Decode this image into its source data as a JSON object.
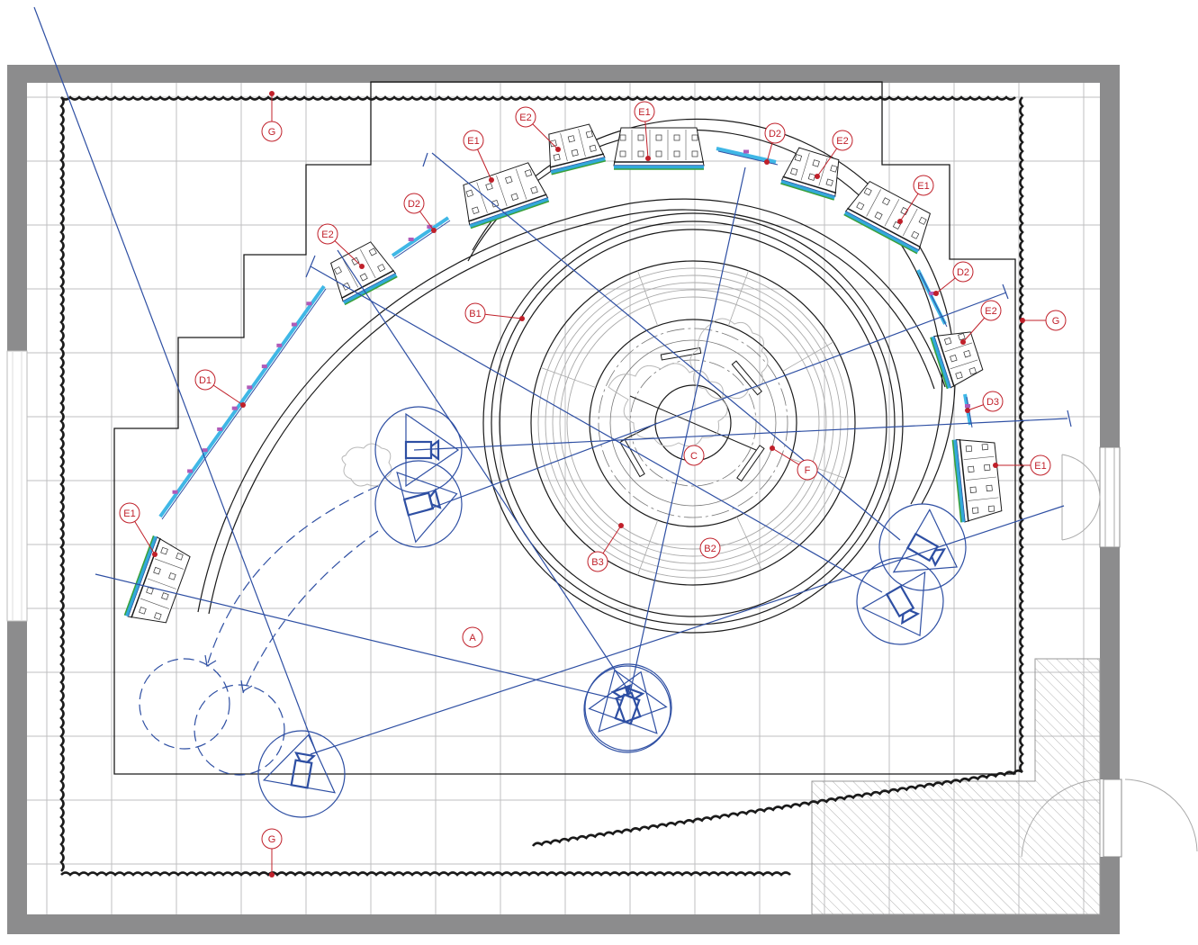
{
  "title": "",
  "colors": {
    "wall": "#8c8c8d",
    "grid": "#bfbfc1",
    "label": "#c0202a",
    "camera": "#2e4fa3",
    "screen": "#3fb7e6",
    "screen_clip": "#b05bb8",
    "cabinet_green": "#3aa13a",
    "outline": "#1a1a1a"
  },
  "labels": {
    "A": "A",
    "B1": "B1",
    "B2": "B2",
    "B3": "B3",
    "C": "C",
    "D1": "D1",
    "D2": "D2",
    "D3": "D3",
    "E1": "E1",
    "E2": "E2",
    "F": "F",
    "G": "G"
  },
  "callouts": [
    {
      "id": "g-top",
      "label": "G"
    },
    {
      "id": "g-right",
      "label": "G"
    },
    {
      "id": "g-bottom",
      "label": "G"
    },
    {
      "id": "e2-a",
      "label": "E2"
    },
    {
      "id": "e1-top",
      "label": "E1"
    },
    {
      "id": "e1-b",
      "label": "E1"
    },
    {
      "id": "d2-a",
      "label": "D2"
    },
    {
      "id": "d2-b",
      "label": "D2"
    },
    {
      "id": "e2-b",
      "label": "E2"
    },
    {
      "id": "e1-c",
      "label": "E1"
    },
    {
      "id": "e2-c",
      "label": "E2"
    },
    {
      "id": "d2-c",
      "label": "D2"
    },
    {
      "id": "e2-d",
      "label": "E2"
    },
    {
      "id": "d3",
      "label": "D3"
    },
    {
      "id": "e1-d",
      "label": "E1"
    },
    {
      "id": "d1",
      "label": "D1"
    },
    {
      "id": "e1-left",
      "label": "E1"
    },
    {
      "id": "b1",
      "label": "B1"
    },
    {
      "id": "c",
      "label": "C"
    },
    {
      "id": "f",
      "label": "F"
    },
    {
      "id": "b3",
      "label": "B3"
    },
    {
      "id": "b2",
      "label": "B2"
    },
    {
      "id": "a",
      "label": "A"
    }
  ],
  "icons": {
    "camera": "camera-icon",
    "door": "door-icon",
    "speaker_cabinet": "cabinet-icon",
    "led_panel": "panel-icon"
  }
}
